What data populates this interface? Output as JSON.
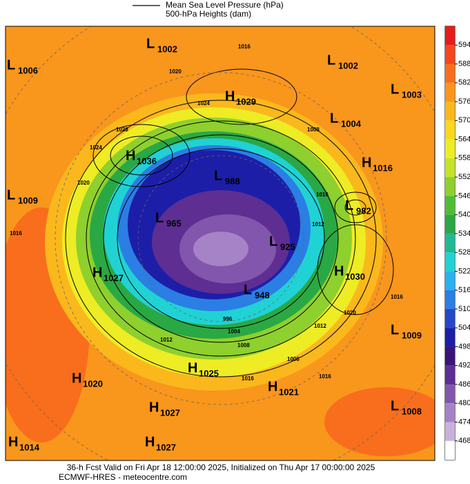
{
  "legend": {
    "lines": [
      "Mean Sea Level Pressure (hPa)",
      "500-hPa Heights (dam)"
    ]
  },
  "colorbar": {
    "ticks": [
      594,
      588,
      582,
      576,
      570,
      564,
      558,
      552,
      546,
      540,
      534,
      528,
      522,
      516,
      510,
      504,
      498,
      492,
      486,
      480,
      474,
      468
    ],
    "colors": [
      "#e51c1c",
      "#f5461e",
      "#f86e1c",
      "#f9961c",
      "#fab81c",
      "#fad81f",
      "#eeec24",
      "#c4e42a",
      "#8ed02e",
      "#50bc36",
      "#2aa844",
      "#22b892",
      "#20d2d4",
      "#2ab0ee",
      "#2a7ee4",
      "#2846cc",
      "#1c1ea8",
      "#3a1478",
      "#5e2e92",
      "#8256ac",
      "#a682c6",
      "#c8b0dc",
      "#ffffff"
    ]
  },
  "centers": [
    {
      "type": "L",
      "value": "1002"
    },
    {
      "type": "L",
      "value": "1006"
    },
    {
      "type": "L",
      "value": "1002"
    },
    {
      "type": "L",
      "value": "1003"
    },
    {
      "type": "H",
      "value": "1029"
    },
    {
      "type": "L",
      "value": "1004"
    },
    {
      "type": "H",
      "value": "1036"
    },
    {
      "type": "H",
      "value": "1016"
    },
    {
      "type": "L",
      "value": "1009"
    },
    {
      "type": "L",
      "value": "988"
    },
    {
      "type": "L",
      "value": "982"
    },
    {
      "type": "L",
      "value": "965"
    },
    {
      "type": "L",
      "value": "925"
    },
    {
      "type": "H",
      "value": "1027"
    },
    {
      "type": "H",
      "value": "1030"
    },
    {
      "type": "L",
      "value": "948"
    },
    {
      "type": "L",
      "value": "1009"
    },
    {
      "type": "H",
      "value": "1025"
    },
    {
      "type": "H",
      "value": "1020"
    },
    {
      "type": "H",
      "value": "1021"
    },
    {
      "type": "H",
      "value": "1027"
    },
    {
      "type": "L",
      "value": "1008"
    },
    {
      "type": "H",
      "value": "1014"
    },
    {
      "type": "H",
      "value": "1027"
    }
  ],
  "isobar_labels": [
    "1016",
    "1020",
    "1024",
    "1028",
    "1024",
    "1020",
    "1016",
    "1008",
    "1012",
    "1016",
    "1020",
    "1016",
    "1012",
    "1008",
    "1004",
    "996",
    "1008",
    "1016",
    "1016",
    "1012"
  ],
  "footer": {
    "lines": [
      "36-h Fcst Valid on Fri Apr 18 12:00:00 2025, Initialized on Thu Apr 17 00:00:00 2025",
      "ECMWF-HRES - meteocentre.com"
    ]
  }
}
